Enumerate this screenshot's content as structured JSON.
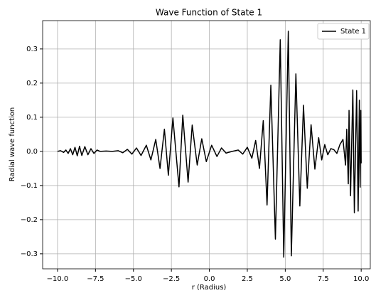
{
  "chart_data": {
    "type": "line",
    "title": "Wave Function of State 1",
    "x_label": "r (Radius)",
    "y_label": "Radial wave function",
    "x": [
      -10,
      -9.8,
      -9.6,
      -9.45,
      -9.3,
      -9.15,
      -9.0,
      -8.85,
      -8.7,
      -8.55,
      -8.4,
      -8.2,
      -8.0,
      -7.8,
      -7.6,
      -7.4,
      -7.2,
      -6.8,
      -6.4,
      -6.0,
      -5.7,
      -5.4,
      -5.1,
      -4.8,
      -4.5,
      -4.15,
      -3.85,
      -3.53,
      -3.25,
      -2.96,
      -2.7,
      -2.4,
      -2.0,
      -1.75,
      -1.4,
      -1.13,
      -0.8,
      -0.5,
      -0.2,
      0.15,
      0.5,
      0.8,
      1.1,
      1.5,
      1.9,
      2.2,
      2.5,
      2.8,
      3.05,
      3.3,
      3.55,
      3.8,
      4.05,
      4.35,
      4.67,
      4.9,
      5.2,
      5.4,
      5.7,
      5.96,
      6.2,
      6.45,
      6.7,
      6.95,
      7.2,
      7.4,
      7.6,
      7.8,
      8.0,
      8.2,
      8.4,
      8.6,
      8.8,
      8.97,
      9.05,
      9.15,
      9.2,
      9.3,
      9.45,
      9.55,
      9.7,
      9.8,
      9.88,
      9.93,
      9.98,
      10.0
    ],
    "series": [
      {
        "name": "State 1",
        "color": "#000000",
        "values": [
          0.0,
          0.002,
          -0.003,
          0.004,
          -0.006,
          0.008,
          -0.01,
          0.012,
          -0.013,
          0.015,
          -0.012,
          0.014,
          -0.01,
          0.008,
          -0.006,
          0.004,
          0.0,
          0.001,
          0.0,
          0.002,
          -0.004,
          0.006,
          -0.008,
          0.01,
          -0.012,
          0.018,
          -0.025,
          0.035,
          -0.05,
          0.065,
          -0.07,
          0.098,
          -0.104,
          0.106,
          -0.09,
          0.077,
          -0.04,
          0.037,
          -0.03,
          0.018,
          -0.015,
          0.01,
          -0.005,
          0.0,
          0.004,
          -0.008,
          0.012,
          -0.02,
          0.032,
          -0.05,
          0.09,
          -0.157,
          0.194,
          -0.257,
          0.327,
          -0.31,
          0.352,
          -0.306,
          0.227,
          -0.16,
          0.135,
          -0.108,
          0.078,
          -0.052,
          0.04,
          -0.025,
          0.02,
          -0.01,
          0.008,
          0.005,
          -0.006,
          0.02,
          0.035,
          -0.04,
          0.065,
          -0.095,
          0.12,
          -0.13,
          0.18,
          -0.18,
          0.178,
          -0.175,
          0.15,
          -0.105,
          0.12,
          -0.035
        ]
      }
    ],
    "xlim": [
      -10.98,
      10.6
    ],
    "ylim": [
      -0.344,
      0.383
    ],
    "xticks": [
      {
        "value": -10,
        "label": "−10.0"
      },
      {
        "value": -7.5,
        "label": "−7.5"
      },
      {
        "value": -5,
        "label": "−5.0"
      },
      {
        "value": -2.5,
        "label": "−2.5"
      },
      {
        "value": 0,
        "label": "0.0"
      },
      {
        "value": 2.5,
        "label": "2.5"
      },
      {
        "value": 5,
        "label": "5.0"
      },
      {
        "value": 7.5,
        "label": "7.5"
      },
      {
        "value": 10,
        "label": "10.0"
      }
    ],
    "yticks": [
      {
        "value": -0.3,
        "label": "−0.3"
      },
      {
        "value": -0.2,
        "label": "−0.2"
      },
      {
        "value": -0.1,
        "label": "−0.1"
      },
      {
        "value": 0,
        "label": "0.0"
      },
      0.1,
      0.2,
      0.3
    ],
    "grid": true,
    "legend_position": "upper right"
  }
}
